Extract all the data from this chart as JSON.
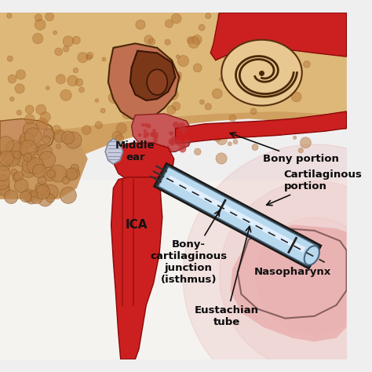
{
  "labels": {
    "middle_ear": "Middle\near",
    "ICA": "ICA",
    "bony_portion": "Bony portion",
    "cartilaginous_portion": "Cartilaginous\nportion",
    "bony_cartilaginous": "Bony-\ncartilaginous\njunction\n(isthmus)",
    "eustachian_tube": "Eustachian\ntube",
    "nasopharynx": "Nasopharynx"
  },
  "bg_color": "#f0eff0",
  "bone_fill": "#d4a870",
  "bone_dark": "#a07040",
  "bone_edge": "#7a5020",
  "cochlea_bg": "#e8c898",
  "cochlea_line": "#4a2808",
  "dark_brown": "#5a2808",
  "mid_brown": "#8a4820",
  "red_vessel": "#cc2020",
  "red_dark": "#8a0808",
  "nasopharynx_red": "#dd6060",
  "tube_light": "#c8dff0",
  "tube_mid": "#a0c8e8",
  "tube_dark": "#303840",
  "text_color": "#111111",
  "fig_w": 4.74,
  "fig_h": 4.74,
  "dpi": 100
}
